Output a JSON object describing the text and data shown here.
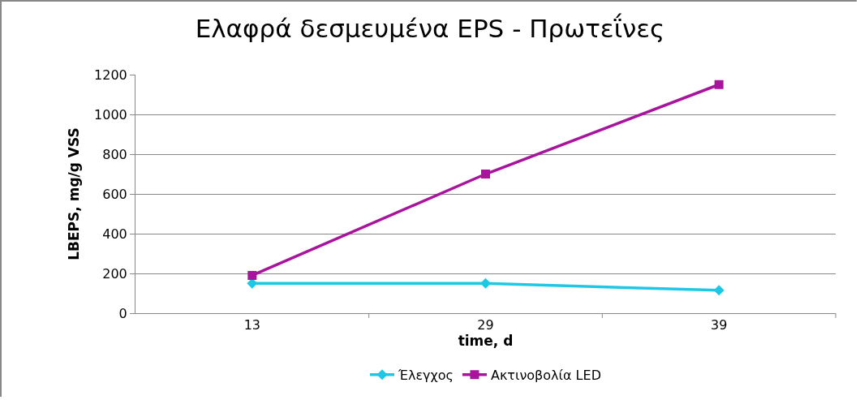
{
  "chart_data": {
    "type": "line",
    "title": "Ελαφρά δεσμευμένα EPS - Πρωτεΐνες",
    "xlabel": "time, d",
    "ylabel": "LBEPS, mg/g VSS",
    "categories": [
      "13",
      "29",
      "39"
    ],
    "series": [
      {
        "name": "Έλεγχος",
        "color": "#1ec8e4",
        "marker": "diamond",
        "values": [
          150,
          150,
          115
        ]
      },
      {
        "name": "Ακτινοβολία LED",
        "color": "#a8149c",
        "marker": "square",
        "values": [
          190,
          700,
          1150
        ]
      }
    ],
    "ylim": [
      0,
      1200
    ],
    "yticks": [
      0,
      200,
      400,
      600,
      800,
      1000,
      1200
    ],
    "grid": "y",
    "legend": "bottom",
    "line_style": "solid"
  }
}
